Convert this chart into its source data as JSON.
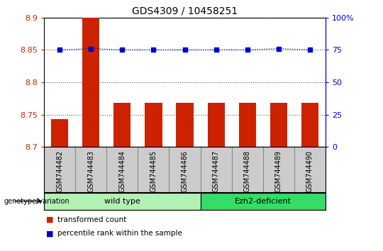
{
  "title": "GDS4309 / 10458251",
  "samples": [
    "GSM744482",
    "GSM744483",
    "GSM744484",
    "GSM744485",
    "GSM744486",
    "GSM744487",
    "GSM744488",
    "GSM744489",
    "GSM744490"
  ],
  "bar_values": [
    8.743,
    8.9,
    8.768,
    8.768,
    8.768,
    8.768,
    8.768,
    8.768,
    8.768
  ],
  "percentile_values": [
    75,
    76,
    75,
    75,
    75,
    75,
    75,
    76,
    75
  ],
  "ylim_left": [
    8.7,
    8.9
  ],
  "ylim_right": [
    0,
    100
  ],
  "yticks_left": [
    8.7,
    8.75,
    8.8,
    8.85,
    8.9
  ],
  "yticks_right": [
    0,
    25,
    50,
    75,
    100
  ],
  "bar_color": "#cc2200",
  "percentile_color": "#0000cc",
  "wild_type_count": 5,
  "ezh2_count": 4,
  "wild_type_label": "wild type",
  "ezh2_label": "Ezh2-deficient",
  "genotype_label": "genotype/variation",
  "legend_bar_label": "transformed count",
  "legend_pct_label": "percentile rank within the sample",
  "wild_type_color": "#b3f0b3",
  "ezh2_color": "#33dd66",
  "left_tick_color": "#cc2200",
  "right_tick_color": "#0000cc",
  "bar_bottom": 8.7,
  "dotted_line_color": "#555555",
  "xtick_bg_color": "#cccccc",
  "cell_border_color": "#888888"
}
